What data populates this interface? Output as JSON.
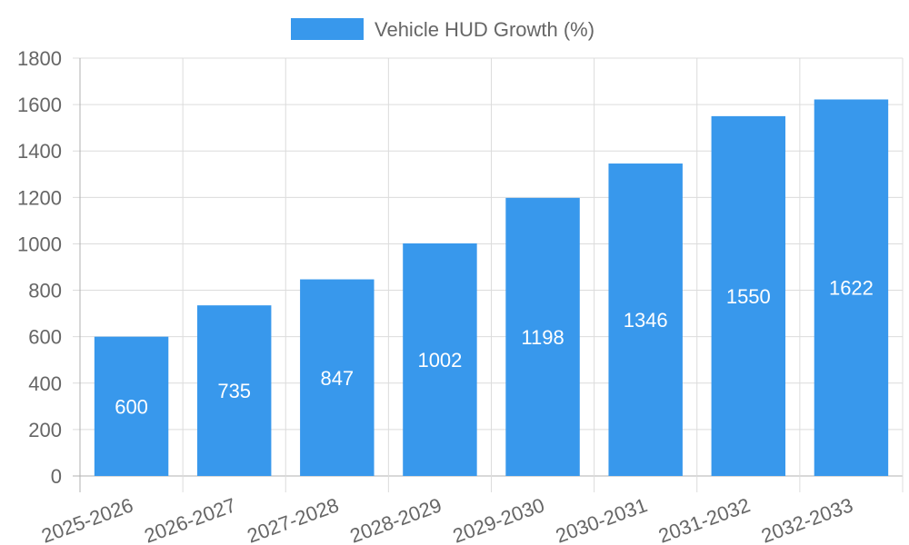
{
  "chart_data": {
    "type": "bar",
    "categories": [
      "2025-2026",
      "2026-2027",
      "2027-2028",
      "2028-2029",
      "2029-2030",
      "2030-2031",
      "2031-2032",
      "2032-2033"
    ],
    "series": [
      {
        "name": "Vehicle HUD Growth (%)",
        "values": [
          600,
          735,
          847,
          1002,
          1198,
          1346,
          1550,
          1622
        ]
      }
    ],
    "ylim": [
      0,
      1800
    ],
    "y_ticks": [
      0,
      200,
      400,
      600,
      800,
      1000,
      1200,
      1400,
      1600,
      1800
    ],
    "grid": true,
    "legend_position": "top-center",
    "colors": {
      "bar": "#3898ec",
      "grid": "#dcdcdc",
      "text": "#666666"
    }
  }
}
